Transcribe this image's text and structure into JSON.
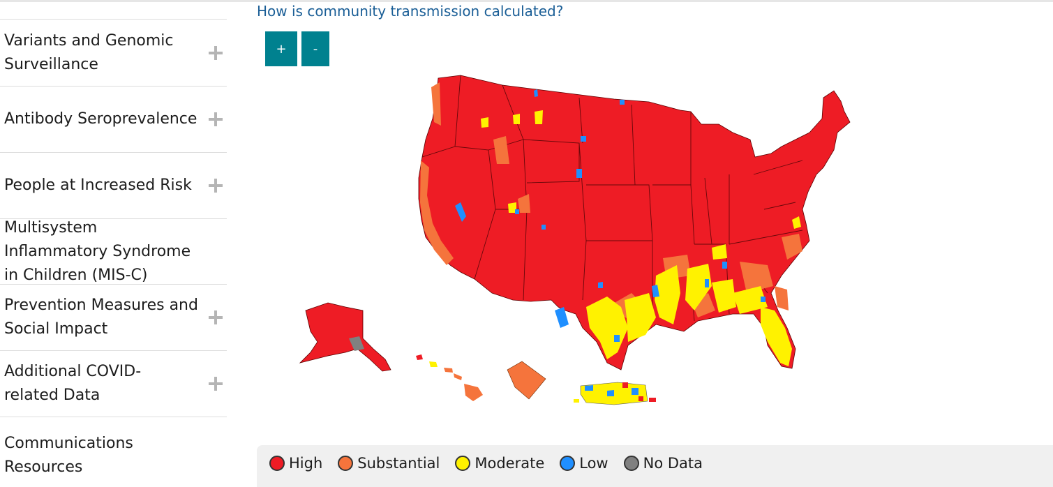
{
  "header": {
    "link_text": "How is community transmission calculated?"
  },
  "sidebar": {
    "items": [
      {
        "label": "Variants and Genomic Surveillance",
        "expandable": true
      },
      {
        "label": "Antibody Seroprevalence",
        "expandable": true
      },
      {
        "label": "People at Increased Risk",
        "expandable": true
      },
      {
        "label": "Multisystem Inflammatory Syndrome in Children (MIS-C)",
        "expandable": false
      },
      {
        "label": "Prevention Measures and Social Impact",
        "expandable": true
      },
      {
        "label": "Additional COVID-related Data",
        "expandable": true
      },
      {
        "label": "Communications Resources",
        "expandable": false
      }
    ]
  },
  "map_controls": {
    "zoom_in": "+",
    "zoom_out": "-"
  },
  "legend": {
    "items": [
      {
        "label": "High",
        "color": "#ee1c25"
      },
      {
        "label": "Substantial",
        "color": "#f5743c"
      },
      {
        "label": "Moderate",
        "color": "#fff200"
      },
      {
        "label": "Low",
        "color": "#1f8fff"
      },
      {
        "label": "No Data",
        "color": "#808080"
      }
    ]
  },
  "colors": {
    "link": "#1a5e96",
    "button": "#00818f",
    "high": "#ee1c25",
    "substantial": "#f5743c",
    "moderate": "#fff200",
    "low": "#1f8fff",
    "no_data": "#808080"
  }
}
